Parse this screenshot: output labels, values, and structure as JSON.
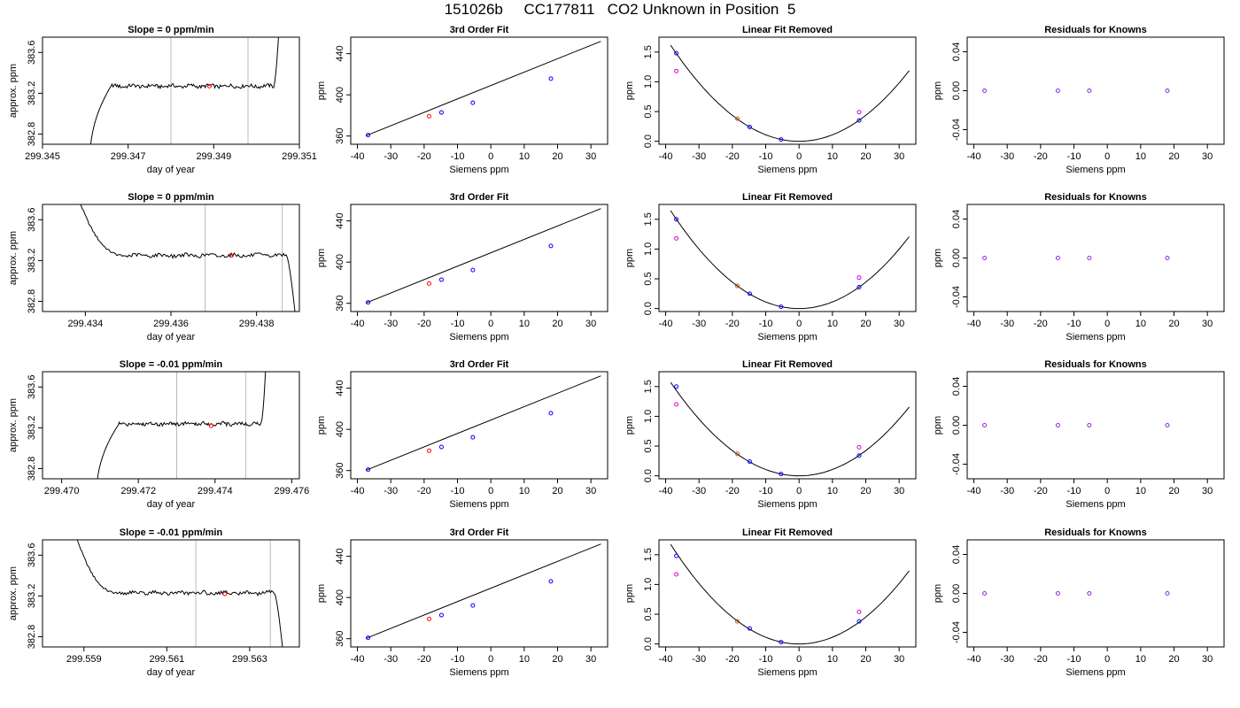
{
  "page_title": "151026b     CC177811   CO2 Unknown in Position  5",
  "colors": {
    "frame": "#000000",
    "marker_lines": "#bbbbbb",
    "blue": "#0000ff",
    "red": "#ff0000",
    "magenta": "#dd00dd",
    "purple": "#8a2be2",
    "orange": "#cc5500"
  },
  "chart_data": [
    {
      "type": "line",
      "title": "Slope =  0  ppm/min",
      "xlabel": "day of year",
      "ylabel": "approx. ppm",
      "xlim": [
        299.345,
        299.351
      ],
      "ylim": [
        382.7,
        383.75
      ],
      "xticks": [
        299.345,
        299.347,
        299.349,
        299.351
      ],
      "xticklabels": [
        "299.345",
        "299.347",
        "299.349",
        "299.351"
      ],
      "yticks": [
        382.8,
        383.2,
        383.6
      ],
      "yticklabels": [
        "382.8",
        "383.2",
        "383.6"
      ],
      "vlines": [
        299.348,
        299.3498
      ],
      "series": [
        {
          "shape": "entry",
          "x_start": 299.3461,
          "x_end": 299.3506,
          "plateau": 383.27,
          "rise_end": 299.3466,
          "fall_start": 299.3504
        }
      ],
      "marker": {
        "x": 299.3489,
        "y": 383.27
      }
    },
    {
      "type": "scatter",
      "title": "3rd Order Fit",
      "xlabel": "Siemens ppm",
      "ylabel": "ppm",
      "xlim": [
        -42,
        35
      ],
      "ylim": [
        352,
        456
      ],
      "xticks": [
        -40,
        -30,
        -20,
        -10,
        0,
        10,
        20,
        30
      ],
      "xticklabels": [
        "-40",
        "-30",
        "-20",
        "-10",
        "0",
        "10",
        "20",
        "30"
      ],
      "yticks": [
        360,
        400,
        440
      ],
      "yticklabels": [
        "360",
        "400",
        "440"
      ],
      "points_x": [
        -36.8,
        -14.8,
        -5.4,
        18.0
      ],
      "points_y": [
        360.9,
        382.9,
        392.3,
        415.7
      ],
      "point_color": "blue",
      "unknown": {
        "x": -18.5,
        "y": 379.2,
        "color": "red"
      },
      "fit_line": {
        "x": [
          -37.5,
          33.0
        ],
        "y": [
          360.2,
          452.0
        ]
      }
    },
    {
      "type": "scatter",
      "title": "Linear Fit Removed",
      "xlabel": "Siemens ppm",
      "ylabel": "ppm",
      "xlim": [
        -42,
        35
      ],
      "ylim": [
        -0.05,
        1.75
      ],
      "xticks": [
        -40,
        -30,
        -20,
        -10,
        0,
        10,
        20,
        30
      ],
      "xticklabels": [
        "-40",
        "-30",
        "-20",
        "-10",
        "0",
        "10",
        "20",
        "30"
      ],
      "yticks": [
        0.0,
        0.5,
        1.0,
        1.5
      ],
      "yticklabels": [
        "0.0",
        "0.5",
        "1.0",
        "1.5"
      ],
      "curve": {
        "a": 0.00109,
        "x_from": -38.5,
        "x_to": 33.0
      },
      "points_x": [
        -36.8,
        -14.8,
        -5.4,
        18.0
      ],
      "points_y": [
        1.48,
        0.24,
        0.03,
        0.35
      ],
      "point_color": "blue",
      "residual_points_x": [
        -36.8,
        18.0
      ],
      "residual_points_y": [
        1.18,
        0.49
      ],
      "residual_color": "magenta",
      "unknown": {
        "x": -18.5,
        "y": 0.38,
        "color": "orange"
      }
    },
    {
      "type": "scatter",
      "title": "Residuals for Knowns",
      "xlabel": "Siemens ppm",
      "ylabel": "ppm",
      "xlim": [
        -42,
        35
      ],
      "ylim": [
        -0.055,
        0.055
      ],
      "xticks": [
        -40,
        -30,
        -20,
        -10,
        0,
        10,
        20,
        30
      ],
      "xticklabels": [
        "-40",
        "-30",
        "-20",
        "-10",
        "0",
        "10",
        "20",
        "30"
      ],
      "yticks": [
        -0.04,
        0.0,
        0.04
      ],
      "yticklabels": [
        "-0.04",
        "0.00",
        "0.04"
      ],
      "points_x": [
        -36.8,
        -14.8,
        -5.4,
        18.0
      ],
      "points_y": [
        0,
        0,
        0,
        0
      ],
      "point_color": "purple"
    },
    {
      "type": "line",
      "title": "Slope =  0  ppm/min",
      "xlabel": "day of year",
      "ylabel": "approx. ppm",
      "xlim": [
        299.433,
        299.439
      ],
      "ylim": [
        382.7,
        383.75
      ],
      "xticks": [
        299.434,
        299.436,
        299.438
      ],
      "xticklabels": [
        "299.434",
        "299.436",
        "299.438"
      ],
      "yticks": [
        382.8,
        383.2,
        383.6
      ],
      "yticklabels": [
        "382.8",
        "383.2",
        "383.6"
      ],
      "vlines": [
        299.4368,
        299.4386
      ],
      "series": [
        {
          "shape": "exit",
          "x_start": 299.4334,
          "x_end": 299.439,
          "plateau": 383.25,
          "rise_end": 299.4349,
          "fall_start": 299.4387
        }
      ],
      "marker": {
        "x": 299.4374,
        "y": 383.25
      }
    },
    {
      "type": "scatter",
      "title": "3rd Order Fit",
      "xlabel": "Siemens ppm",
      "ylabel": "ppm",
      "xlim": [
        -42,
        35
      ],
      "ylim": [
        352,
        456
      ],
      "xticks": [
        -40,
        -30,
        -20,
        -10,
        0,
        10,
        20,
        30
      ],
      "xticklabels": [
        "-40",
        "-30",
        "-20",
        "-10",
        "0",
        "10",
        "20",
        "30"
      ],
      "yticks": [
        360,
        400,
        440
      ],
      "yticklabels": [
        "360",
        "400",
        "440"
      ],
      "points_x": [
        -36.8,
        -14.8,
        -5.4,
        18.0
      ],
      "points_y": [
        360.9,
        382.9,
        392.3,
        415.7
      ],
      "point_color": "blue",
      "unknown": {
        "x": -18.5,
        "y": 379.2,
        "color": "red"
      },
      "fit_line": {
        "x": [
          -37.5,
          33.0
        ],
        "y": [
          360.2,
          452.0
        ]
      }
    },
    {
      "type": "scatter",
      "title": "Linear Fit Removed",
      "xlabel": "Siemens ppm",
      "ylabel": "ppm",
      "xlim": [
        -42,
        35
      ],
      "ylim": [
        -0.05,
        1.75
      ],
      "xticks": [
        -40,
        -30,
        -20,
        -10,
        0,
        10,
        20,
        30
      ],
      "xticklabels": [
        "-40",
        "-30",
        "-20",
        "-10",
        "0",
        "10",
        "20",
        "30"
      ],
      "yticks": [
        0.0,
        0.5,
        1.0,
        1.5
      ],
      "yticklabels": [
        "0.0",
        "0.5",
        "1.0",
        "1.5"
      ],
      "curve": {
        "a": 0.00111,
        "x_from": -38.5,
        "x_to": 33.0
      },
      "points_x": [
        -36.8,
        -14.8,
        -5.4,
        18.0
      ],
      "points_y": [
        1.5,
        0.25,
        0.03,
        0.36
      ],
      "point_color": "blue",
      "residual_points_x": [
        -36.8,
        18.0
      ],
      "residual_points_y": [
        1.18,
        0.52
      ],
      "residual_color": "magenta",
      "unknown": {
        "x": -18.5,
        "y": 0.38,
        "color": "orange"
      }
    },
    {
      "type": "scatter",
      "title": "Residuals for Knowns",
      "xlabel": "Siemens ppm",
      "ylabel": "ppm",
      "xlim": [
        -42,
        35
      ],
      "ylim": [
        -0.055,
        0.055
      ],
      "xticks": [
        -40,
        -30,
        -20,
        -10,
        0,
        10,
        20,
        30
      ],
      "xticklabels": [
        "-40",
        "-30",
        "-20",
        "-10",
        "0",
        "10",
        "20",
        "30"
      ],
      "yticks": [
        -0.04,
        0.0,
        0.04
      ],
      "yticklabels": [
        "-0.04",
        "0.00",
        "0.04"
      ],
      "points_x": [
        -36.8,
        -14.8,
        -5.4,
        18.0
      ],
      "points_y": [
        0,
        0,
        0,
        0
      ],
      "point_color": "purple"
    },
    {
      "type": "line",
      "title": "Slope =  -0.01  ppm/min",
      "xlabel": "day of year",
      "ylabel": "approx. ppm",
      "xlim": [
        299.4695,
        299.4762
      ],
      "ylim": [
        382.7,
        383.75
      ],
      "xticks": [
        299.47,
        299.472,
        299.474,
        299.476
      ],
      "xticklabels": [
        "299.470",
        "299.472",
        "299.474",
        "299.476"
      ],
      "yticks": [
        382.8,
        383.2,
        383.6
      ],
      "yticklabels": [
        "382.8",
        "383.2",
        "383.6"
      ],
      "vlines": [
        299.473,
        299.4748
      ],
      "series": [
        {
          "shape": "entry",
          "x_start": 299.4709,
          "x_end": 299.4754,
          "plateau": 383.24,
          "rise_end": 299.4715,
          "fall_start": 299.4752
        }
      ],
      "marker": {
        "x": 299.4739,
        "y": 383.22
      }
    },
    {
      "type": "scatter",
      "title": "3rd Order Fit",
      "xlabel": "Siemens ppm",
      "ylabel": "ppm",
      "xlim": [
        -42,
        35
      ],
      "ylim": [
        352,
        456
      ],
      "xticks": [
        -40,
        -30,
        -20,
        -10,
        0,
        10,
        20,
        30
      ],
      "xticklabels": [
        "-40",
        "-30",
        "-20",
        "-10",
        "0",
        "10",
        "20",
        "30"
      ],
      "yticks": [
        360,
        400,
        440
      ],
      "yticklabels": [
        "360",
        "400",
        "440"
      ],
      "points_x": [
        -36.8,
        -14.8,
        -5.4,
        18.0
      ],
      "points_y": [
        360.9,
        382.9,
        392.3,
        415.7
      ],
      "point_color": "blue",
      "unknown": {
        "x": -18.5,
        "y": 379.2,
        "color": "red"
      },
      "fit_line": {
        "x": [
          -37.5,
          33.0
        ],
        "y": [
          360.2,
          452.0
        ]
      }
    },
    {
      "type": "scatter",
      "title": "Linear Fit Removed",
      "xlabel": "Siemens ppm",
      "ylabel": "ppm",
      "xlim": [
        -42,
        35
      ],
      "ylim": [
        -0.05,
        1.75
      ],
      "xticks": [
        -40,
        -30,
        -20,
        -10,
        0,
        10,
        20,
        30
      ],
      "xticklabels": [
        "-40",
        "-30",
        "-20",
        "-10",
        "0",
        "10",
        "20",
        "30"
      ],
      "yticks": [
        0.0,
        0.5,
        1.0,
        1.5
      ],
      "yticklabels": [
        "0.0",
        "0.5",
        "1.0",
        "1.5"
      ],
      "curve": {
        "a": 0.00106,
        "x_from": -38.5,
        "x_to": 33.0
      },
      "points_x": [
        -36.8,
        -14.8,
        -5.4,
        18.0
      ],
      "points_y": [
        1.5,
        0.24,
        0.03,
        0.34
      ],
      "point_color": "blue",
      "residual_points_x": [
        -36.8,
        18.0
      ],
      "residual_points_y": [
        1.2,
        0.48
      ],
      "residual_color": "magenta",
      "unknown": {
        "x": -18.5,
        "y": 0.37,
        "color": "orange"
      }
    },
    {
      "type": "scatter",
      "title": "Residuals for Knowns",
      "xlabel": "Siemens ppm",
      "ylabel": "ppm",
      "xlim": [
        -42,
        35
      ],
      "ylim": [
        -0.055,
        0.055
      ],
      "xticks": [
        -40,
        -30,
        -20,
        -10,
        0,
        10,
        20,
        30
      ],
      "xticklabels": [
        "-40",
        "-30",
        "-20",
        "-10",
        "0",
        "10",
        "20",
        "30"
      ],
      "yticks": [
        -0.04,
        0.0,
        0.04
      ],
      "yticklabels": [
        "-0.04",
        "0.00",
        "0.04"
      ],
      "points_x": [
        -36.8,
        -14.8,
        -5.4,
        18.0
      ],
      "points_y": [
        0,
        0,
        0,
        0
      ],
      "point_color": "purple"
    },
    {
      "type": "line",
      "title": "Slope =  -0.01  ppm/min",
      "xlabel": "day of year",
      "ylabel": "approx. ppm",
      "xlim": [
        299.558,
        299.5642
      ],
      "ylim": [
        382.7,
        383.75
      ],
      "xticks": [
        299.559,
        299.561,
        299.563
      ],
      "xticklabels": [
        "299.559",
        "299.561",
        "299.563"
      ],
      "yticks": [
        382.8,
        383.2,
        383.6
      ],
      "yticklabels": [
        "382.8",
        "383.2",
        "383.6"
      ],
      "vlines": [
        299.5617,
        299.5635
      ],
      "series": [
        {
          "shape": "exit",
          "x_start": 299.5584,
          "x_end": 299.5639,
          "plateau": 383.23,
          "rise_end": 299.5598,
          "fall_start": 299.5636
        }
      ],
      "marker": {
        "x": 299.5624,
        "y": 383.22
      }
    },
    {
      "type": "scatter",
      "title": "3rd Order Fit",
      "xlabel": "Siemens ppm",
      "ylabel": "ppm",
      "xlim": [
        -42,
        35
      ],
      "ylim": [
        352,
        456
      ],
      "xticks": [
        -40,
        -30,
        -20,
        -10,
        0,
        10,
        20,
        30
      ],
      "xticklabels": [
        "-40",
        "-30",
        "-20",
        "-10",
        "0",
        "10",
        "20",
        "30"
      ],
      "yticks": [
        360,
        400,
        440
      ],
      "yticklabels": [
        "360",
        "400",
        "440"
      ],
      "points_x": [
        -36.8,
        -14.8,
        -5.4,
        18.0
      ],
      "points_y": [
        360.9,
        382.9,
        392.3,
        415.7
      ],
      "point_color": "blue",
      "unknown": {
        "x": -18.5,
        "y": 379.2,
        "color": "red"
      },
      "fit_line": {
        "x": [
          -37.5,
          33.0
        ],
        "y": [
          360.2,
          452.0
        ]
      }
    },
    {
      "type": "scatter",
      "title": "Linear Fit Removed",
      "xlabel": "Siemens ppm",
      "ylabel": "ppm",
      "xlim": [
        -42,
        35
      ],
      "ylim": [
        -0.05,
        1.75
      ],
      "xticks": [
        -40,
        -30,
        -20,
        -10,
        0,
        10,
        20,
        30
      ],
      "xticklabels": [
        "-40",
        "-30",
        "-20",
        "-10",
        "0",
        "10",
        "20",
        "30"
      ],
      "yticks": [
        0.0,
        0.5,
        1.0,
        1.5
      ],
      "yticklabels": [
        "0.0",
        "0.5",
        "1.0",
        "1.5"
      ],
      "curve": {
        "a": 0.00113,
        "x_from": -38.5,
        "x_to": 33.0
      },
      "points_x": [
        -36.8,
        -14.8,
        -5.4,
        18.0
      ],
      "points_y": [
        1.48,
        0.26,
        0.03,
        0.38
      ],
      "point_color": "blue",
      "residual_points_x": [
        -36.8,
        18.0
      ],
      "residual_points_y": [
        1.17,
        0.54
      ],
      "residual_color": "magenta",
      "unknown": {
        "x": -18.5,
        "y": 0.38,
        "color": "orange"
      }
    },
    {
      "type": "scatter",
      "title": "Residuals for Knowns",
      "xlabel": "Siemens ppm",
      "ylabel": "ppm",
      "xlim": [
        -42,
        35
      ],
      "ylim": [
        -0.055,
        0.055
      ],
      "xticks": [
        -40,
        -30,
        -20,
        -10,
        0,
        10,
        20,
        30
      ],
      "xticklabels": [
        "-40",
        "-30",
        "-20",
        "-10",
        "0",
        "10",
        "20",
        "30"
      ],
      "yticks": [
        -0.04,
        0.0,
        0.04
      ],
      "yticklabels": [
        "-0.04",
        "0.00",
        "0.04"
      ],
      "points_x": [
        -36.8,
        -14.8,
        -5.4,
        18.0
      ],
      "points_y": [
        0,
        0,
        0,
        0
      ],
      "point_color": "purple"
    }
  ]
}
